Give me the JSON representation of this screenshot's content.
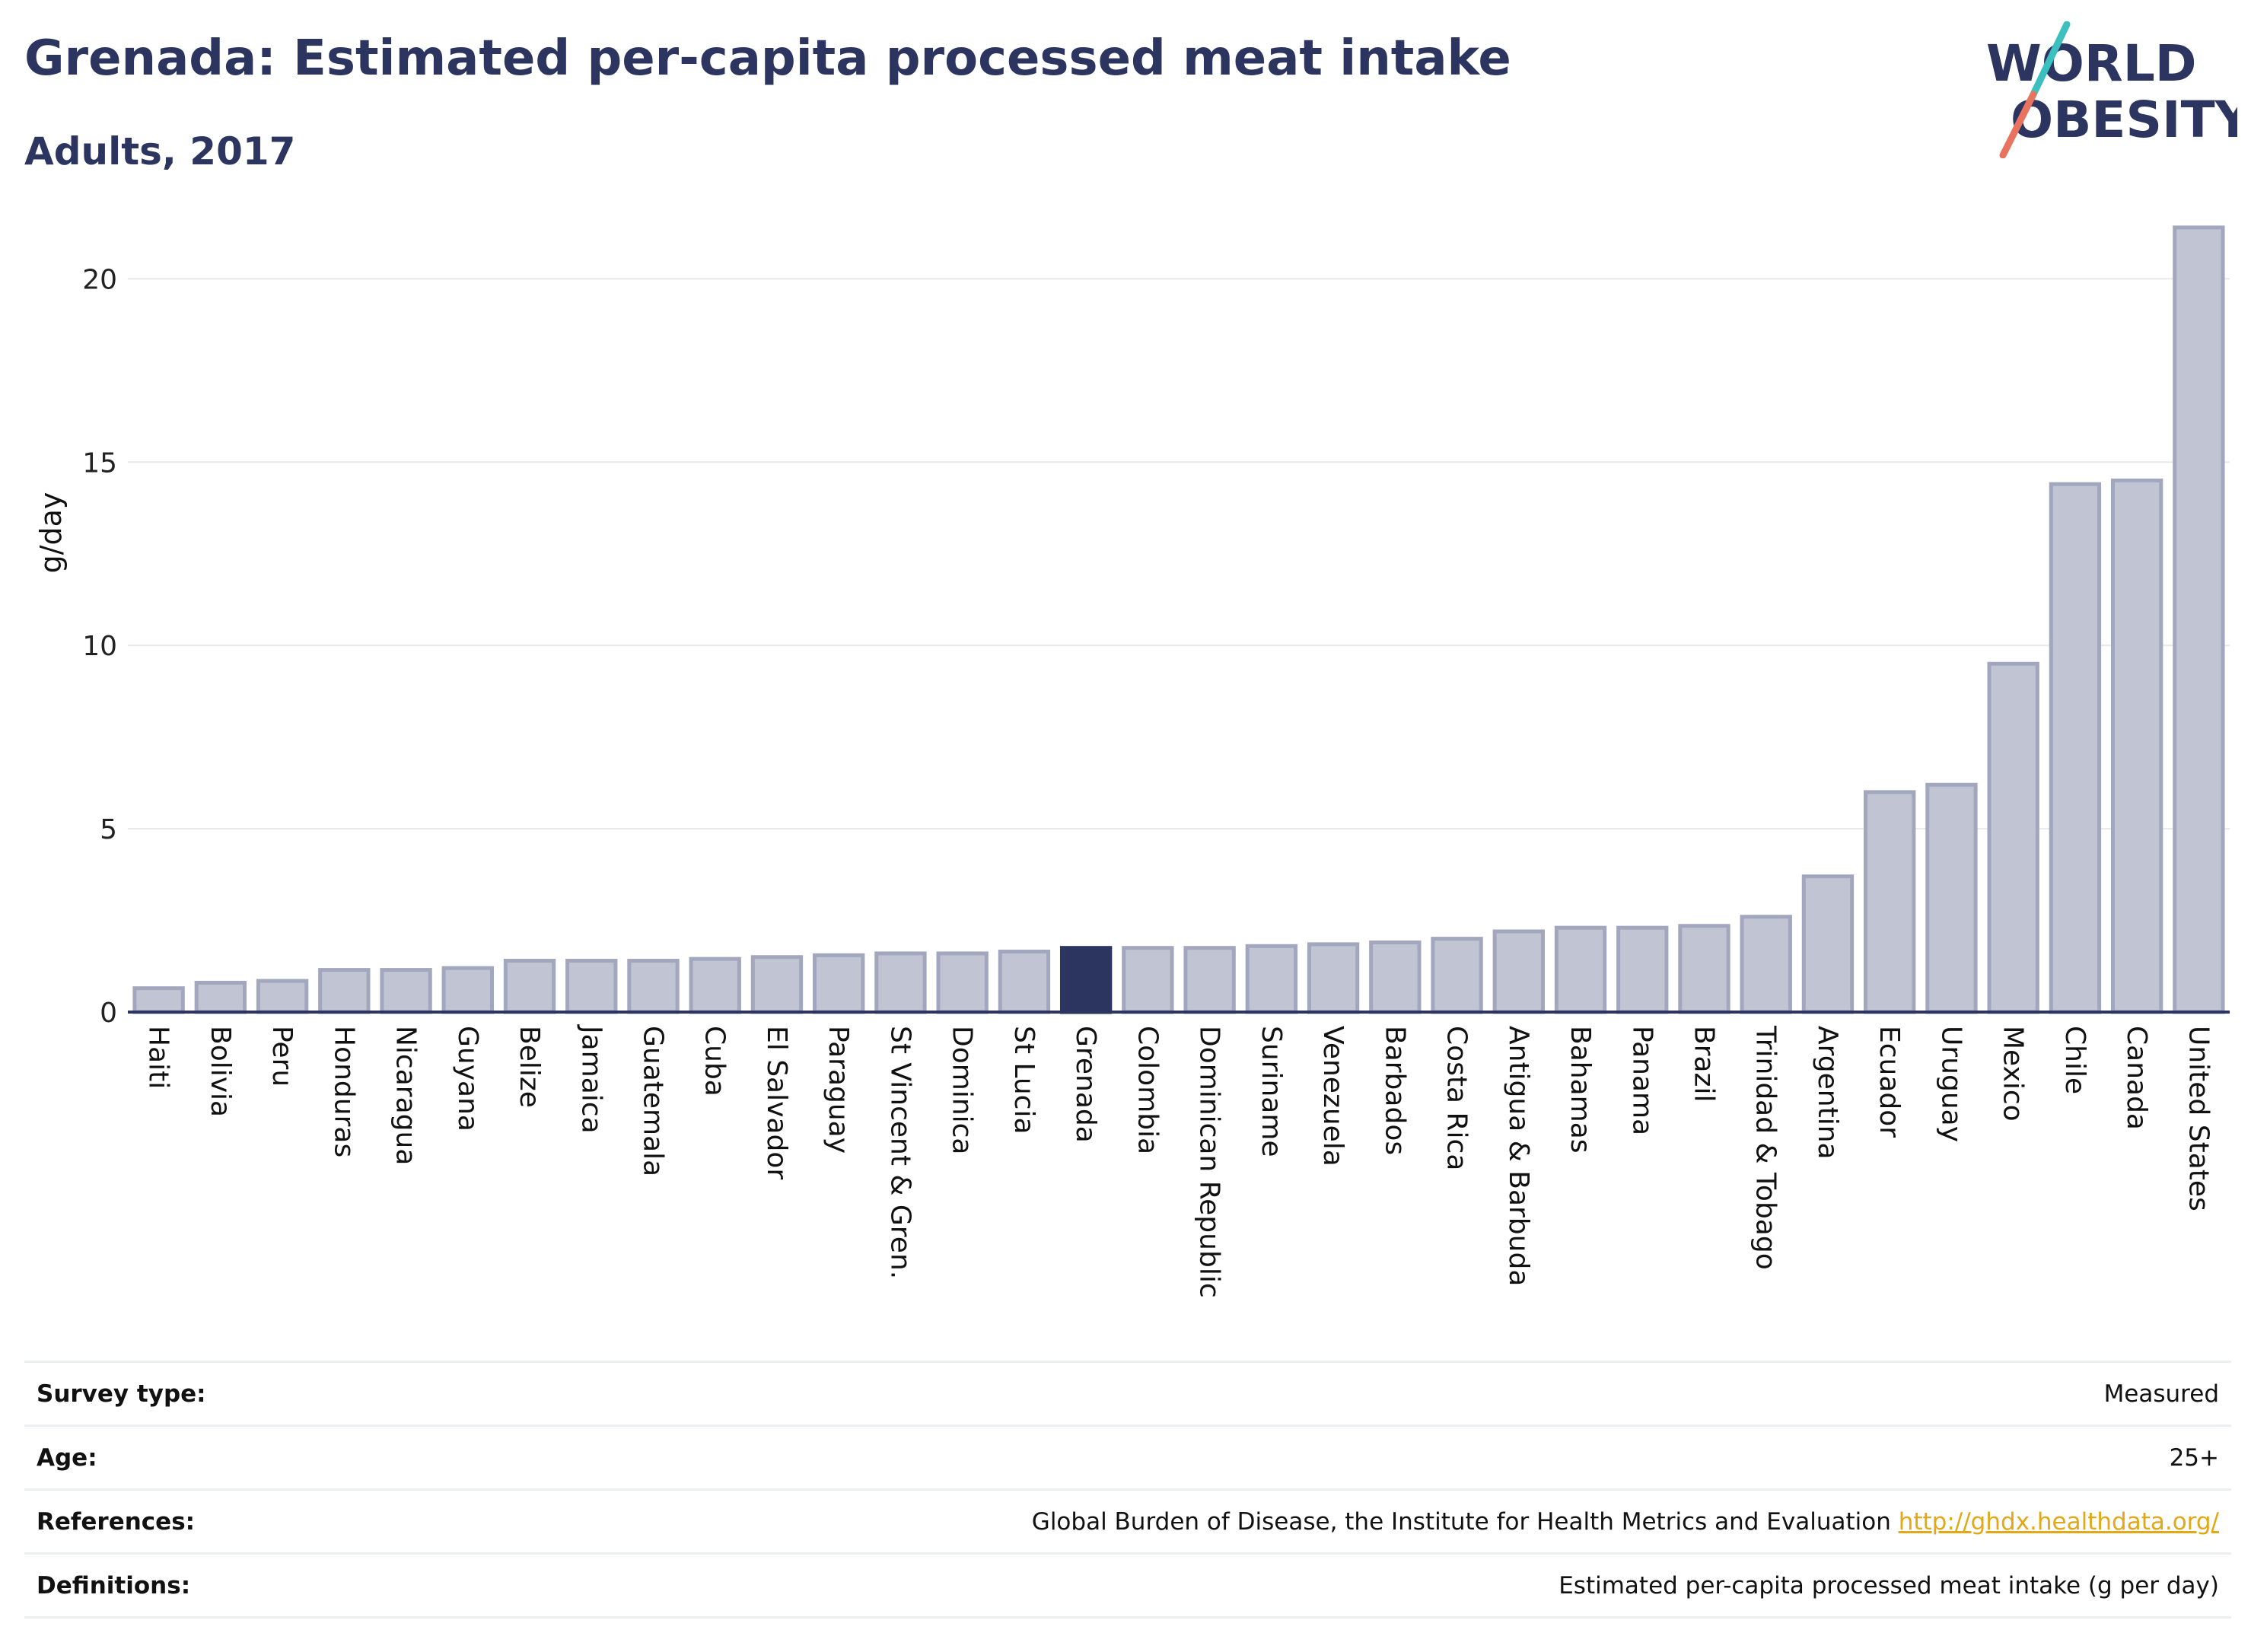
{
  "header": {
    "title": "Grenada: Estimated per-capita processed meat intake",
    "subtitle": "Adults, 2017"
  },
  "logo": {
    "line1": "WORLD",
    "line2": "OBESITY"
  },
  "colors": {
    "bar": "#c1c4d2",
    "bar_stroke": "#a3a7bd",
    "highlight": "#2c3560",
    "gridline": "#e6e8ee",
    "axis": "#2c3560",
    "logo_teal": "#3bbfbf",
    "logo_coral": "#e8735f",
    "link": "#e2a817"
  },
  "chart_data": {
    "type": "bar",
    "ylabel": "g/day",
    "ylim": [
      0,
      22
    ],
    "yticks": [
      0,
      5,
      10,
      15,
      20
    ],
    "grid": true,
    "highlight": "Grenada",
    "categories": [
      "Haiti",
      "Bolivia",
      "Peru",
      "Honduras",
      "Nicaragua",
      "Guyana",
      "Belize",
      "Jamaica",
      "Guatemala",
      "Cuba",
      "El Salvador",
      "Paraguay",
      "St Vincent & Gren.",
      "Dominica",
      "St Lucia",
      "Grenada",
      "Colombia",
      "Dominican Republic",
      "Suriname",
      "Venezuela",
      "Barbados",
      "Costa Rica",
      "Antigua & Barbuda",
      "Bahamas",
      "Panama",
      "Brazil",
      "Trinidad & Tobago",
      "Argentina",
      "Ecuador",
      "Uruguay",
      "Mexico",
      "Chile",
      "Canada",
      "United States"
    ],
    "values": [
      0.65,
      0.8,
      0.85,
      1.15,
      1.15,
      1.2,
      1.4,
      1.4,
      1.4,
      1.45,
      1.5,
      1.55,
      1.6,
      1.6,
      1.65,
      1.75,
      1.75,
      1.75,
      1.8,
      1.85,
      1.9,
      2.0,
      2.2,
      2.3,
      2.3,
      2.35,
      2.6,
      3.7,
      6.0,
      6.2,
      9.5,
      14.4,
      14.5,
      21.4
    ]
  },
  "info": [
    {
      "label": "Survey type:",
      "value": "Measured"
    },
    {
      "label": "Age:",
      "value": "25+"
    },
    {
      "label": "References:",
      "value": "Global Burden of Disease, the Institute for Health Metrics and Evaluation",
      "link": "http://ghdx.healthdata.org/"
    },
    {
      "label": "Definitions:",
      "value": "Estimated per-capita processed meat intake (g per day)"
    }
  ]
}
